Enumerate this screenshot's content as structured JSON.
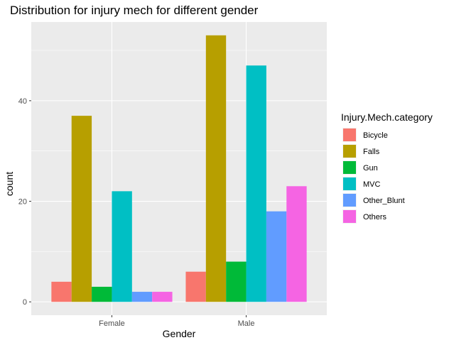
{
  "chart_data": {
    "type": "bar",
    "title": "Distribution for injury mech for different gender",
    "xlabel": "Gender",
    "ylabel": "count",
    "categories": [
      "Female",
      "Male"
    ],
    "ylim": [
      -2.65,
      55.65
    ],
    "yticks": [
      0,
      20,
      40
    ],
    "grid": true,
    "legend": {
      "title": "Injury.Mech.category",
      "position": "right"
    },
    "series": [
      {
        "name": "Bicycle",
        "color": "#F8766D",
        "values": [
          4,
          6
        ]
      },
      {
        "name": "Falls",
        "color": "#B79F00",
        "values": [
          37,
          53
        ]
      },
      {
        "name": "Gun",
        "color": "#00BA38",
        "values": [
          3,
          8
        ]
      },
      {
        "name": "MVC",
        "color": "#00BFC4",
        "values": [
          22,
          47
        ]
      },
      {
        "name": "Other_Blunt",
        "color": "#619CFF",
        "values": [
          2,
          18
        ]
      },
      {
        "name": "Others",
        "color": "#F564E3",
        "values": [
          2,
          23
        ]
      }
    ],
    "panel_background": "#EBEBEB",
    "grid_color": "#FFFFFF"
  }
}
